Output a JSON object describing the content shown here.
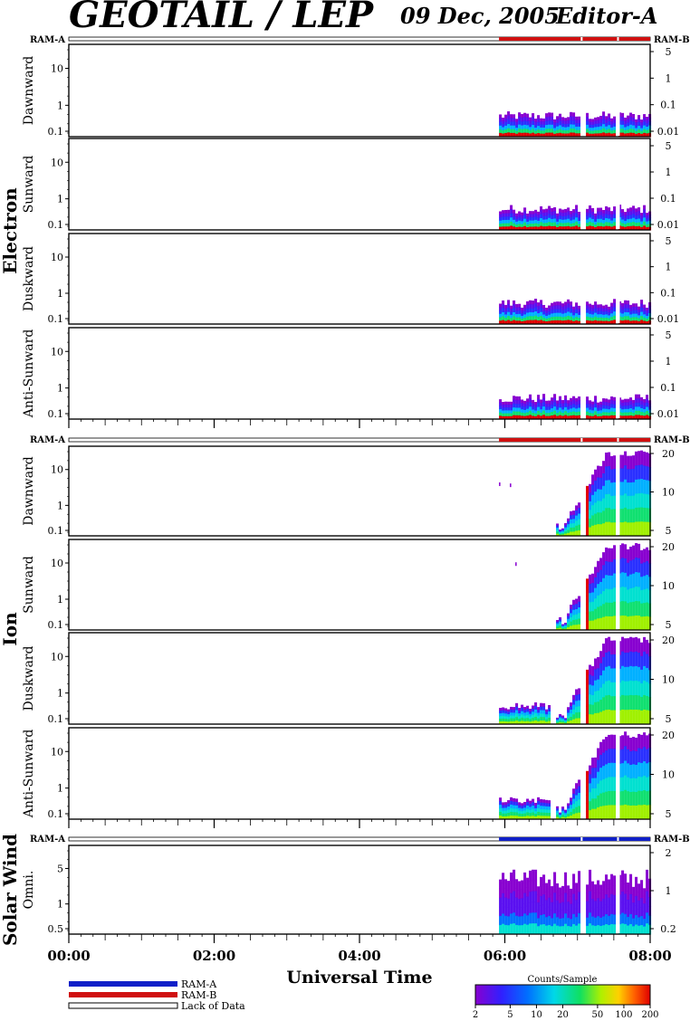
{
  "header": {
    "title": "GEOTAIL / LEP",
    "date": "09 Dec, 2005",
    "editor": "Editor-A"
  },
  "ram": {
    "a": "RAM-A",
    "b": "RAM-B"
  },
  "species": {
    "electron": "Electron",
    "ion": "Ion",
    "solar_wind": "Solar Wind"
  },
  "panels": [
    {
      "label": "Dawnward",
      "group": "electron",
      "y_ticks": [
        "10",
        "1",
        "0.1"
      ],
      "right_ticks": [
        "5",
        "1",
        "0.1",
        "0.01"
      ]
    },
    {
      "label": "Sunward",
      "group": "electron",
      "y_ticks": [
        "10",
        "1",
        "0.1"
      ],
      "right_ticks": [
        "5",
        "1",
        "0.1",
        "0.01"
      ]
    },
    {
      "label": "Duskward",
      "group": "electron",
      "y_ticks": [
        "10",
        "1",
        "0.1"
      ],
      "right_ticks": [
        "5",
        "1",
        "0.1",
        "0.01"
      ]
    },
    {
      "label": "Anti-Sunward",
      "group": "electron",
      "y_ticks": [
        "10",
        "1",
        "0.1"
      ],
      "right_ticks": [
        "5",
        "1",
        "0.1",
        "0.01"
      ]
    },
    {
      "label": "Dawnward",
      "group": "ion",
      "y_ticks": [
        "10",
        "1",
        "0.1"
      ],
      "right_ticks": [
        "20",
        "10",
        "5"
      ]
    },
    {
      "label": "Sunward",
      "group": "ion",
      "y_ticks": [
        "10",
        "1",
        "0.1"
      ],
      "right_ticks": [
        "20",
        "10",
        "5"
      ]
    },
    {
      "label": "Duskward",
      "group": "ion",
      "y_ticks": [
        "10",
        "1",
        "0.1"
      ],
      "right_ticks": [
        "20",
        "10",
        "5"
      ]
    },
    {
      "label": "Anti-Sunward",
      "group": "ion",
      "y_ticks": [
        "10",
        "1",
        "0.1"
      ],
      "right_ticks": [
        "20",
        "10",
        "5"
      ]
    },
    {
      "label": "Omni.",
      "group": "solar_wind",
      "y_ticks": [
        "5",
        "1",
        "0.5"
      ],
      "right_ticks": [
        "2",
        "1",
        "0.2"
      ]
    }
  ],
  "x_axis": {
    "label": "Universal Time",
    "ticks": [
      "00:00",
      "02:00",
      "04:00",
      "06:00",
      "08:00"
    ]
  },
  "legend": {
    "ram_a": "RAM-A",
    "ram_b": "RAM-B",
    "lack": "Lack of Data",
    "colorbar_title": "Counts/Sample",
    "colorbar_ticks": [
      "2",
      "5",
      "10",
      "20",
      "50",
      "100",
      "200"
    ]
  },
  "colors": {
    "ram_a": "#1020c8",
    "ram_b": "#d01010",
    "ink": "#000000"
  },
  "chart_data": {
    "type": "heatmap",
    "title": "GEOTAIL / LEP",
    "xlabel": "Universal Time",
    "x_range_hours": [
      0,
      8
    ],
    "data_start_hour": 5.92,
    "data_gaps_hours": [
      [
        7.02,
        7.1
      ],
      [
        7.52,
        7.56
      ]
    ],
    "electron_y_range": [
      0.08,
      50
    ],
    "ion_y_range": [
      0.08,
      50
    ],
    "solar_wind_y_range": [
      0.2,
      8
    ],
    "colorbar_range": [
      2,
      200
    ],
    "colorbar_scale": "log",
    "ram_electron": "RAM-B",
    "ram_ion": "RAM-B",
    "ram_solar_wind": "RAM-A"
  }
}
